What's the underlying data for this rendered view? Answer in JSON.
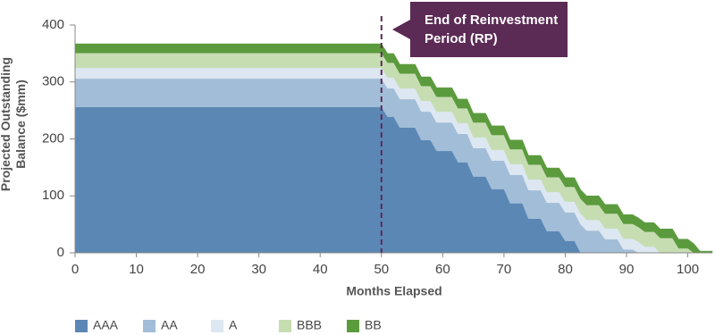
{
  "chart_data": {
    "type": "stacked_area",
    "x_label": "Months Elapsed",
    "y_label": "Projected Outstanding Balance ($mm)",
    "x": [
      0,
      50,
      51,
      52,
      53,
      55.5,
      56.5,
      58,
      59,
      61.5,
      62.5,
      64,
      65,
      67,
      68,
      70,
      71,
      73,
      74,
      76,
      77,
      79,
      80,
      81.5,
      82.5,
      83.5,
      85.5,
      86.5,
      88.5,
      89.5,
      91,
      92,
      93,
      94.5,
      95.5,
      97.5,
      98.5,
      100,
      101,
      102,
      104
    ],
    "series": [
      {
        "name": "AAA",
        "color": "#5b87b5",
        "values": [
          256,
          256,
          239,
          239,
          220,
          220,
          198,
          198,
          179,
          179,
          159,
          159,
          134,
          134,
          112,
          112,
          87,
          87,
          60,
          60,
          38,
          38,
          21,
          21,
          0,
          0,
          0,
          0,
          0,
          0,
          0,
          0,
          0,
          0,
          0,
          0,
          0,
          0,
          0,
          0,
          0
        ]
      },
      {
        "name": "AA",
        "color": "#a2bdd7",
        "values": [
          50,
          50,
          50,
          50,
          50,
          50,
          50,
          50,
          50,
          50,
          50,
          50,
          50,
          50,
          50,
          50,
          50,
          50,
          50,
          50,
          50,
          50,
          50,
          50,
          50,
          39,
          39,
          24,
          24,
          6,
          6,
          0,
          0,
          0,
          0,
          0,
          0,
          0,
          0,
          0,
          0
        ]
      },
      {
        "name": "A",
        "color": "#dde7f1",
        "values": [
          19,
          19,
          19,
          19,
          19,
          19,
          19,
          19,
          19,
          19,
          19,
          19,
          19,
          19,
          19,
          19,
          19,
          19,
          19,
          19,
          19,
          19,
          19,
          19,
          19,
          19,
          19,
          19,
          19,
          19,
          19,
          19,
          11,
          11,
          0,
          0,
          0,
          0,
          0,
          0,
          0
        ]
      },
      {
        "name": "BBB",
        "color": "#c6ddb2",
        "values": [
          26,
          26,
          26,
          26,
          26,
          26,
          26,
          26,
          26,
          26,
          26,
          26,
          26,
          26,
          26,
          26,
          26,
          26,
          26,
          26,
          26,
          26,
          26,
          26,
          26,
          26,
          26,
          26,
          26,
          26,
          26,
          26,
          26,
          26,
          26,
          26,
          8,
          8,
          0,
          0,
          0
        ]
      },
      {
        "name": "BB",
        "color": "#5b9b3d",
        "values": [
          16,
          16,
          16,
          16,
          16,
          16,
          16,
          16,
          16,
          16,
          16,
          16,
          16,
          16,
          16,
          16,
          16,
          16,
          16,
          16,
          16,
          16,
          16,
          16,
          16,
          16,
          16,
          16,
          16,
          16,
          16,
          16,
          16,
          16,
          16,
          16,
          16,
          16,
          16,
          3,
          3
        ]
      }
    ],
    "xlim": [
      0,
      104
    ],
    "xticks": [
      0,
      10,
      20,
      30,
      40,
      50,
      60,
      70,
      80,
      90,
      100
    ],
    "ylim": [
      0,
      400
    ],
    "yticks": [
      0,
      100,
      200,
      300,
      400
    ],
    "annotation": {
      "x": 50,
      "text": "End of Reinvestment Period (RP)",
      "color": "#5b2a55"
    }
  }
}
